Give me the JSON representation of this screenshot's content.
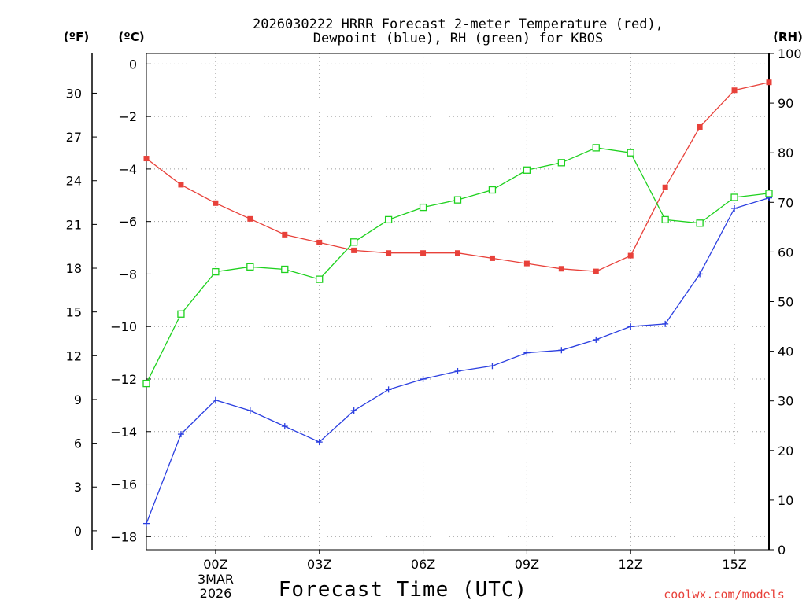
{
  "chart_data": {
    "type": "line",
    "title_line1": "2026030222 HRRR Forecast 2-meter Temperature (red),",
    "title_line2": "Dewpoint (blue), RH (green) for KBOS",
    "xlabel": "Forecast Time (UTC)",
    "unit_f": "(ºF)",
    "unit_c": "(ºC)",
    "unit_rh": "(RH)",
    "credit": "coolwx.com/models",
    "date_label_1": "3MAR",
    "date_label_2": "2026",
    "xlim": [
      -2,
      16
    ],
    "ylim_c": [
      -18.5,
      0.4
    ],
    "ylim_rh": [
      0,
      100
    ],
    "x_ticks": [
      {
        "x": 0,
        "label": "00Z"
      },
      {
        "x": 3,
        "label": "03Z"
      },
      {
        "x": 6,
        "label": "06Z"
      },
      {
        "x": 9,
        "label": "09Z"
      },
      {
        "x": 12,
        "label": "12Z"
      },
      {
        "x": 15,
        "label": "15Z"
      }
    ],
    "c_ticks": [
      0,
      -2,
      -4,
      -6,
      -8,
      -10,
      -12,
      -14,
      -16,
      -18
    ],
    "c_tick_labels": [
      "0",
      "−2",
      "−4",
      "−6",
      "−8",
      "−10",
      "−12",
      "−14",
      "−16",
      "−18"
    ],
    "f_ticks": [
      30,
      27,
      24,
      21,
      18,
      15,
      12,
      9,
      6,
      3,
      0
    ],
    "rh_ticks": [
      100,
      90,
      80,
      70,
      60,
      50,
      40,
      30,
      20,
      10,
      0
    ],
    "x": [
      -2,
      -1,
      0,
      1,
      2,
      3,
      4,
      5,
      6,
      7,
      8,
      9,
      10,
      11,
      12,
      13,
      14,
      15,
      16
    ],
    "series": [
      {
        "name": "Temperature",
        "axis": "c",
        "color": "#e8413a",
        "marker": "filled-square",
        "values": [
          -3.6,
          -4.6,
          -5.3,
          -5.9,
          -6.5,
          -6.8,
          -7.1,
          -7.2,
          -7.2,
          -7.2,
          -7.4,
          -7.6,
          -7.8,
          -7.9,
          -7.3,
          -4.7,
          -2.4,
          -1.0,
          -0.7
        ]
      },
      {
        "name": "Dewpoint",
        "axis": "c",
        "color": "#2b3fe0",
        "marker": "plus",
        "values": [
          -17.5,
          -14.1,
          -12.8,
          -13.2,
          -13.8,
          -14.4,
          -13.2,
          -12.4,
          -12.0,
          -11.7,
          -11.5,
          -11.0,
          -10.9,
          -10.5,
          -10.0,
          -9.9,
          -8.0,
          -5.5,
          -5.1
        ]
      },
      {
        "name": "RH",
        "axis": "rh",
        "color": "#1fd11f",
        "marker": "open-square",
        "values": [
          33.5,
          47.5,
          56.0,
          57.0,
          56.5,
          54.5,
          62.0,
          66.5,
          69.0,
          70.5,
          72.5,
          76.5,
          78.0,
          81.0,
          80.0,
          66.5,
          65.8,
          71.0,
          71.8
        ]
      }
    ]
  }
}
